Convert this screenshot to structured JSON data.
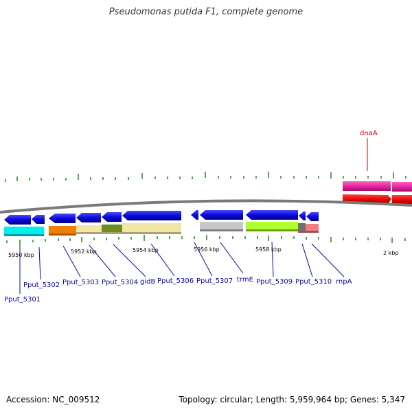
{
  "title": "Pseudomonas putida F1, complete genome",
  "footer": {
    "accession": "Accession: NC_009512",
    "stats": "Topology: circular; Length: 5,959,964 bp; Genes: 5,347"
  },
  "colors": {
    "gene_arrow": "#0a0adc",
    "label_blue": "#0a0aa0",
    "label_red": "#d00000",
    "backbone": "#7a7a7a",
    "tick": "#1a8a1a"
  },
  "kbp_labels": [
    "5950 kbp",
    "5952 kbp",
    "5954 kbp",
    "5956 kbp",
    "5958 kbp",
    "2 kbp"
  ],
  "gene_labels_blue": [
    "Pput_5301",
    "Pput_5302",
    "Pput_5303",
    "Pput_5304",
    "gidB",
    "Pput_5306",
    "Pput_5307",
    "trmE",
    "Pput_5309",
    "Pput_5310",
    "rnpA"
  ],
  "gene_label_red": "dnaA"
}
